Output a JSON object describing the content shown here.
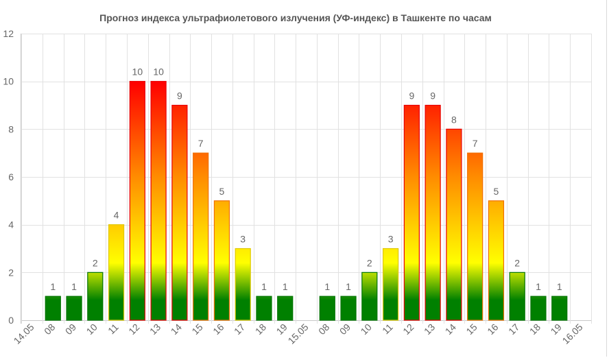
{
  "chart_data": {
    "type": "bar",
    "title": "Прогноз индекса ультрафиолетового излучения (УФ-индекс) в Ташкенте по часам",
    "xlabel": "",
    "ylabel": "",
    "ylim": [
      0,
      12
    ],
    "yticks": [
      0,
      2,
      4,
      6,
      8,
      10,
      12
    ],
    "grid": true,
    "legend": "none",
    "colors": {
      "high": "#ff0000",
      "mid_high": "#ff8c00",
      "mid": "#ffff00",
      "low": "#008000",
      "border_high": "#e80000",
      "border_low": "#007300"
    },
    "categories": [
      "14.05",
      "08",
      "09",
      "10",
      "11",
      "12",
      "13",
      "14",
      "15",
      "16",
      "17",
      "18",
      "19",
      "15.05",
      "08",
      "09",
      "10",
      "11",
      "12",
      "13",
      "14",
      "15",
      "16",
      "17",
      "18",
      "19",
      "16.05"
    ],
    "values": [
      null,
      1,
      1,
      2,
      4,
      10,
      10,
      9,
      7,
      5,
      3,
      1,
      1,
      null,
      1,
      1,
      2,
      3,
      9,
      9,
      8,
      7,
      5,
      2,
      1,
      1,
      null
    ]
  }
}
